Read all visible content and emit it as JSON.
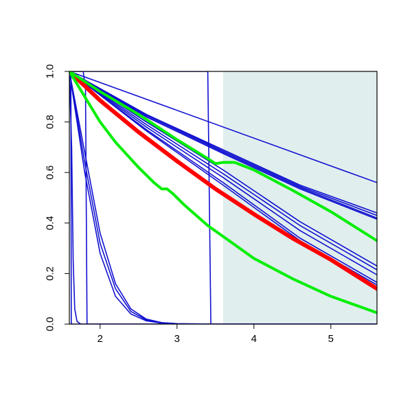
{
  "chart_data": {
    "type": "line",
    "title": "",
    "xlabel": "",
    "ylabel": "",
    "xlim": [
      1.6,
      5.6
    ],
    "ylim": [
      0.0,
      1.0
    ],
    "x_ticks": [
      2,
      3,
      4,
      5
    ],
    "x_tick_labels": [
      "2",
      "3",
      "4",
      "5"
    ],
    "y_ticks": [
      0.0,
      0.2,
      0.4,
      0.6,
      0.8,
      1.0
    ],
    "y_tick_labels": [
      "0.0",
      "0.2",
      "0.4",
      "0.6",
      "0.8",
      "1.0"
    ],
    "grid": false,
    "legend": "none",
    "shaded_region": {
      "x_start": 3.6,
      "x_end": 5.6,
      "color": "#e0eeee"
    },
    "colors": {
      "blue": "#1010d0",
      "red": "#ff0000",
      "green": "#00ee00"
    },
    "series": [
      {
        "color": "blue",
        "width": 1.6,
        "points": [
          [
            1.6,
            1.0
          ],
          [
            1.62,
            1.0
          ],
          [
            1.625,
            0.0
          ],
          [
            5.6,
            0.0
          ]
        ]
      },
      {
        "color": "blue",
        "width": 1.6,
        "points": [
          [
            1.6,
            1.0
          ],
          [
            1.63,
            0.7
          ],
          [
            1.65,
            0.25
          ],
          [
            1.67,
            0.06
          ],
          [
            1.7,
            0.01
          ],
          [
            1.75,
            0.0
          ],
          [
            5.6,
            0.0
          ]
        ]
      },
      {
        "color": "blue",
        "width": 1.6,
        "points": [
          [
            1.6,
            1.0
          ],
          [
            1.78,
            1.0
          ],
          [
            1.81,
            0.93
          ],
          [
            1.83,
            0.0
          ],
          [
            5.6,
            0.0
          ]
        ]
      },
      {
        "color": "blue",
        "width": 1.6,
        "points": [
          [
            1.6,
            1.0
          ],
          [
            3.4,
            1.0
          ],
          [
            3.44,
            0.0
          ],
          [
            5.6,
            0.0
          ]
        ]
      },
      {
        "color": "blue",
        "width": 1.6,
        "points": [
          [
            1.6,
            1.0
          ],
          [
            1.8,
            0.6
          ],
          [
            2.0,
            0.28
          ],
          [
            2.2,
            0.11
          ],
          [
            2.4,
            0.04
          ],
          [
            2.6,
            0.013
          ],
          [
            2.8,
            0.004
          ],
          [
            3.0,
            0.001
          ],
          [
            3.5,
            0.0
          ],
          [
            5.6,
            0.0
          ]
        ]
      },
      {
        "color": "blue",
        "width": 1.6,
        "points": [
          [
            1.6,
            1.0
          ],
          [
            1.8,
            0.64
          ],
          [
            2.0,
            0.32
          ],
          [
            2.2,
            0.14
          ],
          [
            2.4,
            0.05
          ],
          [
            2.6,
            0.017
          ],
          [
            2.8,
            0.005
          ],
          [
            3.0,
            0.001
          ],
          [
            3.5,
            0.0
          ],
          [
            5.6,
            0.0
          ]
        ]
      },
      {
        "color": "blue",
        "width": 1.6,
        "points": [
          [
            1.6,
            1.0
          ],
          [
            1.8,
            0.68
          ],
          [
            2.0,
            0.36
          ],
          [
            2.2,
            0.16
          ],
          [
            2.4,
            0.06
          ],
          [
            2.6,
            0.02
          ],
          [
            2.8,
            0.006
          ],
          [
            3.0,
            0.002
          ],
          [
            3.5,
            0.0
          ],
          [
            5.6,
            0.0
          ]
        ]
      },
      {
        "color": "blue",
        "width": 1.6,
        "points": [
          [
            1.6,
            1.0
          ],
          [
            5.6,
            0.56
          ]
        ]
      },
      {
        "color": "blue",
        "width": 1.6,
        "points": [
          [
            1.6,
            1.0
          ],
          [
            2.6,
            0.83
          ],
          [
            3.6,
            0.69
          ],
          [
            4.6,
            0.55
          ],
          [
            5.6,
            0.44
          ]
        ]
      },
      {
        "color": "blue",
        "width": 1.6,
        "points": [
          [
            1.6,
            1.0
          ],
          [
            2.6,
            0.83
          ],
          [
            3.6,
            0.685
          ],
          [
            4.6,
            0.545
          ],
          [
            5.6,
            0.43
          ]
        ]
      },
      {
        "color": "blue",
        "width": 1.6,
        "points": [
          [
            1.6,
            1.0
          ],
          [
            2.6,
            0.825
          ],
          [
            3.6,
            0.68
          ],
          [
            4.6,
            0.54
          ],
          [
            5.6,
            0.42
          ]
        ]
      },
      {
        "color": "blue",
        "width": 1.6,
        "points": [
          [
            1.6,
            1.0
          ],
          [
            2.6,
            0.82
          ],
          [
            3.6,
            0.675
          ],
          [
            4.6,
            0.535
          ],
          [
            5.6,
            0.415
          ]
        ]
      },
      {
        "color": "blue",
        "width": 1.6,
        "points": [
          [
            1.6,
            1.0
          ],
          [
            2.6,
            0.8
          ],
          [
            3.6,
            0.61
          ],
          [
            4.6,
            0.405
          ],
          [
            5.6,
            0.23
          ]
        ]
      },
      {
        "color": "blue",
        "width": 1.6,
        "points": [
          [
            1.6,
            1.0
          ],
          [
            2.6,
            0.79
          ],
          [
            3.6,
            0.595
          ],
          [
            4.6,
            0.39
          ],
          [
            5.6,
            0.215
          ]
        ]
      },
      {
        "color": "blue",
        "width": 1.6,
        "points": [
          [
            1.6,
            1.0
          ],
          [
            2.6,
            0.78
          ],
          [
            3.6,
            0.58
          ],
          [
            4.6,
            0.37
          ],
          [
            5.6,
            0.195
          ]
        ]
      },
      {
        "color": "blue",
        "width": 1.6,
        "points": [
          [
            1.6,
            1.0
          ],
          [
            2.6,
            0.77
          ],
          [
            3.6,
            0.56
          ],
          [
            4.6,
            0.34
          ],
          [
            5.6,
            0.165
          ]
        ]
      },
      {
        "color": "blue",
        "width": 1.6,
        "points": [
          [
            1.6,
            1.0
          ],
          [
            2.6,
            0.765
          ],
          [
            3.6,
            0.55
          ],
          [
            4.6,
            0.33
          ],
          [
            5.6,
            0.155
          ]
        ]
      },
      {
        "color": "red",
        "width": 6,
        "points": [
          [
            1.6,
            1.0
          ],
          [
            2.0,
            0.885
          ],
          [
            2.5,
            0.76
          ],
          [
            3.0,
            0.645
          ],
          [
            3.5,
            0.535
          ],
          [
            4.0,
            0.435
          ],
          [
            4.5,
            0.34
          ],
          [
            5.0,
            0.255
          ],
          [
            5.6,
            0.14
          ]
        ]
      },
      {
        "color": "green",
        "width": 4,
        "points": [
          [
            1.6,
            1.0
          ],
          [
            2.0,
            0.92
          ],
          [
            2.5,
            0.83
          ],
          [
            3.0,
            0.73
          ],
          [
            3.4,
            0.655
          ],
          [
            3.5,
            0.635
          ],
          [
            3.6,
            0.64
          ],
          [
            3.75,
            0.64
          ],
          [
            4.0,
            0.61
          ],
          [
            4.5,
            0.53
          ],
          [
            5.0,
            0.445
          ],
          [
            5.6,
            0.33
          ]
        ]
      },
      {
        "color": "green",
        "width": 4,
        "points": [
          [
            1.6,
            1.0
          ],
          [
            1.8,
            0.9
          ],
          [
            2.0,
            0.8
          ],
          [
            2.2,
            0.72
          ],
          [
            2.5,
            0.62
          ],
          [
            2.7,
            0.56
          ],
          [
            2.8,
            0.535
          ],
          [
            2.87,
            0.535
          ],
          [
            2.95,
            0.515
          ],
          [
            3.1,
            0.47
          ],
          [
            3.4,
            0.39
          ],
          [
            3.7,
            0.325
          ],
          [
            4.0,
            0.26
          ],
          [
            4.5,
            0.18
          ],
          [
            5.0,
            0.11
          ],
          [
            5.6,
            0.045
          ]
        ]
      }
    ]
  }
}
